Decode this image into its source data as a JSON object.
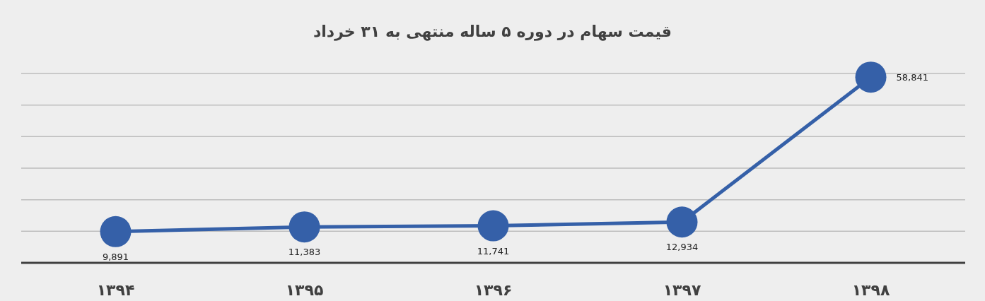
{
  "chart_data": {
    "type": "line",
    "title": "قیمت سهام در دوره ۵ ساله منتهی به ۳۱ خرداد",
    "categories": [
      "۱۳۹۴",
      "۱۳۹۵",
      "۱۳۹۶",
      "۱۳۹۷",
      "۱۳۹۸"
    ],
    "values": [
      9891,
      11383,
      11741,
      12934,
      58841
    ],
    "value_labels": [
      "9,891",
      "11,383",
      "11,741",
      "12,934",
      "58,841"
    ],
    "color": "#3560a8",
    "marker": "circle",
    "line_style": "solid",
    "grid": "y"
  }
}
